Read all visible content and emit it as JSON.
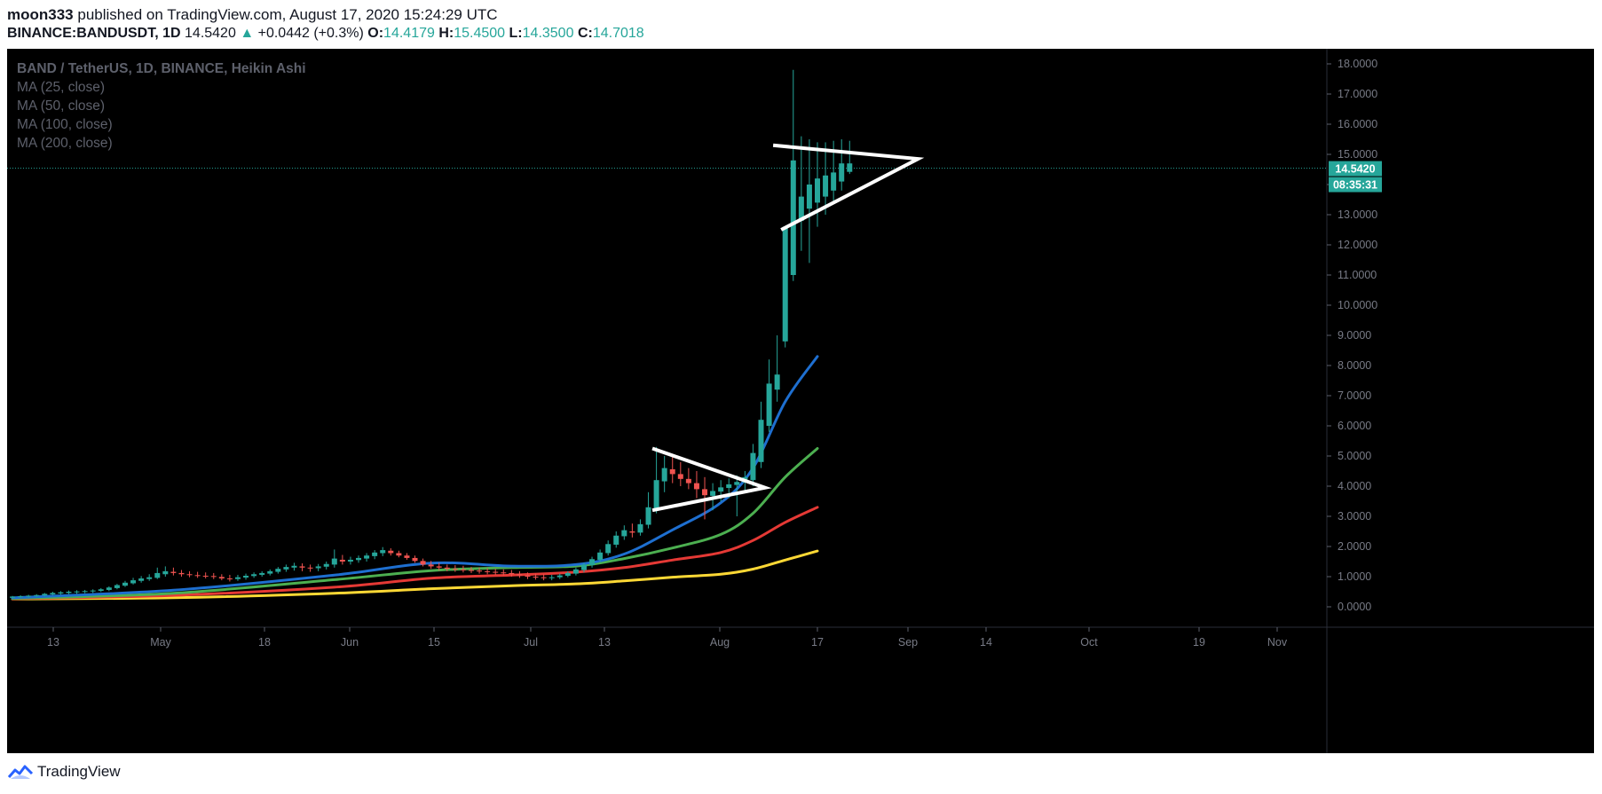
{
  "header": {
    "author": "moon333",
    "published_text": "published on TradingView.com, August 17, 2020 15:24:29 UTC",
    "symbol": "BINANCE:BANDUSDT, 1D",
    "last": "14.5420",
    "change": "+0.0442 (+0.3%)",
    "o_label": "O:",
    "o": "14.4179",
    "h_label": "H:",
    "h": "15.4500",
    "l_label": "L:",
    "l": "14.3500",
    "c_label": "C:",
    "c": "14.7018"
  },
  "legend": {
    "title": "BAND / TetherUS, 1D, BINANCE, Heikin Ashi",
    "ma": [
      "MA (25, close)",
      "MA (50, close)",
      "MA (100, close)",
      "MA (200, close)"
    ]
  },
  "price_badge": "14.5420",
  "countdown_badge": "08:35:31",
  "footer": {
    "brand": "TradingView"
  },
  "colors": {
    "background": "#000000",
    "up": "#26a69a",
    "down": "#ef5350",
    "ma25": "#1e6fd0",
    "ma50": "#4caf50",
    "ma100": "#e53935",
    "ma200": "#fdd835",
    "drawing": "#ffffff"
  },
  "chart_data": {
    "type": "candlestick",
    "x_ticks": [
      "13",
      "May",
      "18",
      "Jun",
      "15",
      "Jul",
      "13",
      "Aug",
      "17",
      "Sep",
      "14",
      "Oct",
      "19",
      "Nov"
    ],
    "y_ticks": [
      "0.0000",
      "1.0000",
      "2.0000",
      "3.0000",
      "4.0000",
      "5.0000",
      "6.0000",
      "7.0000",
      "8.0000",
      "9.0000",
      "10.0000",
      "11.0000",
      "12.0000",
      "13.0000",
      "14.0000",
      "15.0000",
      "16.0000",
      "17.0000",
      "18.0000"
    ],
    "ylim": [
      -0.5,
      18.5
    ],
    "last_price": 14.542,
    "candles": [
      {
        "o": 0.3,
        "h": 0.36,
        "l": 0.28,
        "c": 0.34
      },
      {
        "o": 0.33,
        "h": 0.38,
        "l": 0.3,
        "c": 0.35
      },
      {
        "o": 0.34,
        "h": 0.4,
        "l": 0.31,
        "c": 0.37
      },
      {
        "o": 0.36,
        "h": 0.42,
        "l": 0.33,
        "c": 0.39
      },
      {
        "o": 0.38,
        "h": 0.46,
        "l": 0.35,
        "c": 0.43
      },
      {
        "o": 0.41,
        "h": 0.5,
        "l": 0.38,
        "c": 0.46
      },
      {
        "o": 0.44,
        "h": 0.52,
        "l": 0.4,
        "c": 0.48
      },
      {
        "o": 0.46,
        "h": 0.54,
        "l": 0.42,
        "c": 0.5
      },
      {
        "o": 0.48,
        "h": 0.55,
        "l": 0.43,
        "c": 0.51
      },
      {
        "o": 0.5,
        "h": 0.56,
        "l": 0.45,
        "c": 0.52
      },
      {
        "o": 0.51,
        "h": 0.58,
        "l": 0.46,
        "c": 0.54
      },
      {
        "o": 0.53,
        "h": 0.62,
        "l": 0.49,
        "c": 0.58
      },
      {
        "o": 0.56,
        "h": 0.68,
        "l": 0.52,
        "c": 0.64
      },
      {
        "o": 0.62,
        "h": 0.76,
        "l": 0.58,
        "c": 0.72
      },
      {
        "o": 0.7,
        "h": 0.86,
        "l": 0.66,
        "c": 0.8
      },
      {
        "o": 0.78,
        "h": 0.96,
        "l": 0.74,
        "c": 0.88
      },
      {
        "o": 0.86,
        "h": 1.02,
        "l": 0.8,
        "c": 0.94
      },
      {
        "o": 0.92,
        "h": 1.08,
        "l": 0.86,
        "c": 0.98
      },
      {
        "o": 0.96,
        "h": 1.3,
        "l": 0.92,
        "c": 1.12
      },
      {
        "o": 1.08,
        "h": 1.34,
        "l": 1.0,
        "c": 1.18
      },
      {
        "o": 1.16,
        "h": 1.3,
        "l": 1.04,
        "c": 1.12
      },
      {
        "o": 1.12,
        "h": 1.22,
        "l": 1.0,
        "c": 1.08
      },
      {
        "o": 1.08,
        "h": 1.18,
        "l": 0.98,
        "c": 1.05
      },
      {
        "o": 1.05,
        "h": 1.16,
        "l": 0.96,
        "c": 1.03
      },
      {
        "o": 1.03,
        "h": 1.14,
        "l": 0.94,
        "c": 1.02
      },
      {
        "o": 1.02,
        "h": 1.12,
        "l": 0.92,
        "c": 0.99
      },
      {
        "o": 0.99,
        "h": 1.08,
        "l": 0.88,
        "c": 0.94
      },
      {
        "o": 0.94,
        "h": 1.06,
        "l": 0.84,
        "c": 0.92
      },
      {
        "o": 0.92,
        "h": 1.06,
        "l": 0.86,
        "c": 0.98
      },
      {
        "o": 0.97,
        "h": 1.1,
        "l": 0.9,
        "c": 1.03
      },
      {
        "o": 1.02,
        "h": 1.14,
        "l": 0.96,
        "c": 1.08
      },
      {
        "o": 1.06,
        "h": 1.18,
        "l": 1.0,
        "c": 1.12
      },
      {
        "o": 1.1,
        "h": 1.24,
        "l": 1.04,
        "c": 1.18
      },
      {
        "o": 1.16,
        "h": 1.32,
        "l": 1.1,
        "c": 1.26
      },
      {
        "o": 1.24,
        "h": 1.4,
        "l": 1.16,
        "c": 1.32
      },
      {
        "o": 1.3,
        "h": 1.46,
        "l": 1.2,
        "c": 1.36
      },
      {
        "o": 1.34,
        "h": 1.44,
        "l": 1.18,
        "c": 1.3
      },
      {
        "o": 1.3,
        "h": 1.4,
        "l": 1.16,
        "c": 1.28
      },
      {
        "o": 1.28,
        "h": 1.42,
        "l": 1.18,
        "c": 1.34
      },
      {
        "o": 1.33,
        "h": 1.5,
        "l": 1.24,
        "c": 1.42
      },
      {
        "o": 1.4,
        "h": 1.9,
        "l": 1.3,
        "c": 1.6
      },
      {
        "o": 1.56,
        "h": 1.72,
        "l": 1.4,
        "c": 1.5
      },
      {
        "o": 1.5,
        "h": 1.66,
        "l": 1.4,
        "c": 1.56
      },
      {
        "o": 1.55,
        "h": 1.7,
        "l": 1.46,
        "c": 1.62
      },
      {
        "o": 1.6,
        "h": 1.78,
        "l": 1.5,
        "c": 1.7
      },
      {
        "o": 1.68,
        "h": 1.88,
        "l": 1.58,
        "c": 1.8
      },
      {
        "o": 1.78,
        "h": 1.98,
        "l": 1.68,
        "c": 1.88
      },
      {
        "o": 1.86,
        "h": 1.94,
        "l": 1.7,
        "c": 1.78
      },
      {
        "o": 1.78,
        "h": 1.86,
        "l": 1.64,
        "c": 1.7
      },
      {
        "o": 1.7,
        "h": 1.78,
        "l": 1.56,
        "c": 1.62
      },
      {
        "o": 1.62,
        "h": 1.7,
        "l": 1.46,
        "c": 1.52
      },
      {
        "o": 1.52,
        "h": 1.6,
        "l": 1.34,
        "c": 1.4
      },
      {
        "o": 1.4,
        "h": 1.52,
        "l": 1.26,
        "c": 1.34
      },
      {
        "o": 1.34,
        "h": 1.46,
        "l": 1.2,
        "c": 1.3
      },
      {
        "o": 1.3,
        "h": 1.4,
        "l": 1.18,
        "c": 1.26
      },
      {
        "o": 1.26,
        "h": 1.38,
        "l": 1.16,
        "c": 1.24
      },
      {
        "o": 1.24,
        "h": 1.36,
        "l": 1.14,
        "c": 1.22
      },
      {
        "o": 1.22,
        "h": 1.32,
        "l": 1.12,
        "c": 1.2
      },
      {
        "o": 1.2,
        "h": 1.3,
        "l": 1.1,
        "c": 1.18
      },
      {
        "o": 1.18,
        "h": 1.28,
        "l": 1.08,
        "c": 1.16
      },
      {
        "o": 1.16,
        "h": 1.26,
        "l": 1.06,
        "c": 1.14
      },
      {
        "o": 1.14,
        "h": 1.24,
        "l": 1.04,
        "c": 1.12
      },
      {
        "o": 1.12,
        "h": 1.22,
        "l": 1.0,
        "c": 1.08
      },
      {
        "o": 1.08,
        "h": 1.18,
        "l": 0.96,
        "c": 1.04
      },
      {
        "o": 1.04,
        "h": 1.14,
        "l": 0.92,
        "c": 1.0
      },
      {
        "o": 1.0,
        "h": 1.1,
        "l": 0.9,
        "c": 0.98
      },
      {
        "o": 0.98,
        "h": 1.08,
        "l": 0.88,
        "c": 0.96
      },
      {
        "o": 0.96,
        "h": 1.06,
        "l": 0.88,
        "c": 0.98
      },
      {
        "o": 0.98,
        "h": 1.1,
        "l": 0.92,
        "c": 1.04
      },
      {
        "o": 1.03,
        "h": 1.18,
        "l": 0.98,
        "c": 1.12
      },
      {
        "o": 1.1,
        "h": 1.3,
        "l": 1.04,
        "c": 1.24
      },
      {
        "o": 1.22,
        "h": 1.46,
        "l": 1.14,
        "c": 1.4
      },
      {
        "o": 1.38,
        "h": 1.66,
        "l": 1.3,
        "c": 1.58
      },
      {
        "o": 1.56,
        "h": 1.9,
        "l": 1.48,
        "c": 1.8
      },
      {
        "o": 1.78,
        "h": 2.2,
        "l": 1.7,
        "c": 2.08
      },
      {
        "o": 2.06,
        "h": 2.5,
        "l": 1.96,
        "c": 2.36
      },
      {
        "o": 2.34,
        "h": 2.7,
        "l": 2.22,
        "c": 2.54
      },
      {
        "o": 2.5,
        "h": 2.76,
        "l": 2.3,
        "c": 2.46
      },
      {
        "o": 2.46,
        "h": 2.9,
        "l": 2.36,
        "c": 2.74
      },
      {
        "o": 2.72,
        "h": 3.8,
        "l": 2.6,
        "c": 3.3
      },
      {
        "o": 3.26,
        "h": 5.3,
        "l": 3.1,
        "c": 4.2
      },
      {
        "o": 4.16,
        "h": 5.0,
        "l": 3.8,
        "c": 4.6
      },
      {
        "o": 4.56,
        "h": 5.0,
        "l": 4.1,
        "c": 4.4
      },
      {
        "o": 4.4,
        "h": 4.8,
        "l": 4.0,
        "c": 4.24
      },
      {
        "o": 4.24,
        "h": 4.6,
        "l": 3.9,
        "c": 4.1
      },
      {
        "o": 4.1,
        "h": 4.5,
        "l": 3.6,
        "c": 3.9
      },
      {
        "o": 3.9,
        "h": 4.3,
        "l": 2.9,
        "c": 3.7
      },
      {
        "o": 3.68,
        "h": 4.1,
        "l": 3.2,
        "c": 3.84
      },
      {
        "o": 3.82,
        "h": 4.2,
        "l": 3.5,
        "c": 3.96
      },
      {
        "o": 3.94,
        "h": 4.26,
        "l": 3.6,
        "c": 4.06
      },
      {
        "o": 4.04,
        "h": 4.36,
        "l": 3.0,
        "c": 4.14
      },
      {
        "o": 4.12,
        "h": 4.5,
        "l": 3.8,
        "c": 4.3
      },
      {
        "o": 4.2,
        "h": 5.4,
        "l": 4.0,
        "c": 5.1
      },
      {
        "o": 4.8,
        "h": 6.8,
        "l": 4.6,
        "c": 6.2
      },
      {
        "o": 6.0,
        "h": 8.2,
        "l": 5.8,
        "c": 7.4
      },
      {
        "o": 7.2,
        "h": 9.0,
        "l": 6.8,
        "c": 7.7
      },
      {
        "o": 8.8,
        "h": 12.6,
        "l": 8.6,
        "c": 12.6
      },
      {
        "o": 11.0,
        "h": 17.8,
        "l": 10.8,
        "c": 14.8
      },
      {
        "o": 12.8,
        "h": 15.6,
        "l": 11.8,
        "c": 13.6
      },
      {
        "o": 13.2,
        "h": 15.5,
        "l": 11.4,
        "c": 14.0
      },
      {
        "o": 13.4,
        "h": 15.4,
        "l": 12.6,
        "c": 14.2
      },
      {
        "o": 13.6,
        "h": 15.4,
        "l": 13.0,
        "c": 14.3
      },
      {
        "o": 13.8,
        "h": 15.45,
        "l": 13.4,
        "c": 14.4
      },
      {
        "o": 14.1,
        "h": 15.5,
        "l": 13.8,
        "c": 14.7
      },
      {
        "o": 14.42,
        "h": 15.45,
        "l": 14.35,
        "c": 14.7
      }
    ],
    "moving_averages": [
      {
        "name": "MA (25, close)",
        "points": [
          [
            0,
            0.3
          ],
          [
            20,
            0.55
          ],
          [
            40,
            1.05
          ],
          [
            52,
            1.45
          ],
          [
            62,
            1.35
          ],
          [
            70,
            1.4
          ],
          [
            76,
            1.75
          ],
          [
            82,
            2.55
          ],
          [
            88,
            3.45
          ],
          [
            92,
            4.6
          ],
          [
            96,
            6.8
          ],
          [
            100,
            8.3
          ]
        ]
      },
      {
        "name": "MA (50, close)",
        "points": [
          [
            0,
            0.28
          ],
          [
            20,
            0.45
          ],
          [
            40,
            0.9
          ],
          [
            52,
            1.2
          ],
          [
            62,
            1.3
          ],
          [
            70,
            1.35
          ],
          [
            76,
            1.6
          ],
          [
            82,
            1.95
          ],
          [
            88,
            2.4
          ],
          [
            92,
            3.1
          ],
          [
            96,
            4.3
          ],
          [
            100,
            5.25
          ]
        ]
      },
      {
        "name": "MA (100, close)",
        "points": [
          [
            0,
            0.27
          ],
          [
            20,
            0.38
          ],
          [
            40,
            0.65
          ],
          [
            52,
            0.95
          ],
          [
            62,
            1.05
          ],
          [
            70,
            1.15
          ],
          [
            76,
            1.3
          ],
          [
            82,
            1.55
          ],
          [
            88,
            1.8
          ],
          [
            92,
            2.2
          ],
          [
            96,
            2.8
          ],
          [
            100,
            3.3
          ]
        ]
      },
      {
        "name": "MA (200, close)",
        "points": [
          [
            0,
            0.26
          ],
          [
            20,
            0.3
          ],
          [
            40,
            0.45
          ],
          [
            52,
            0.6
          ],
          [
            62,
            0.7
          ],
          [
            70,
            0.76
          ],
          [
            76,
            0.86
          ],
          [
            82,
            0.98
          ],
          [
            88,
            1.08
          ],
          [
            92,
            1.25
          ],
          [
            96,
            1.55
          ],
          [
            100,
            1.85
          ]
        ]
      }
    ],
    "drawings": [
      {
        "name": "pennant-1",
        "points": [
          [
            79.5,
            5.25
          ],
          [
            93.5,
            3.95
          ],
          [
            79.5,
            3.2
          ]
        ]
      },
      {
        "name": "pennant-2",
        "points": [
          [
            94.5,
            15.3
          ],
          [
            112.5,
            14.85
          ],
          [
            95.5,
            12.5
          ]
        ]
      }
    ],
    "grid": false,
    "legend_position": "top-left"
  }
}
